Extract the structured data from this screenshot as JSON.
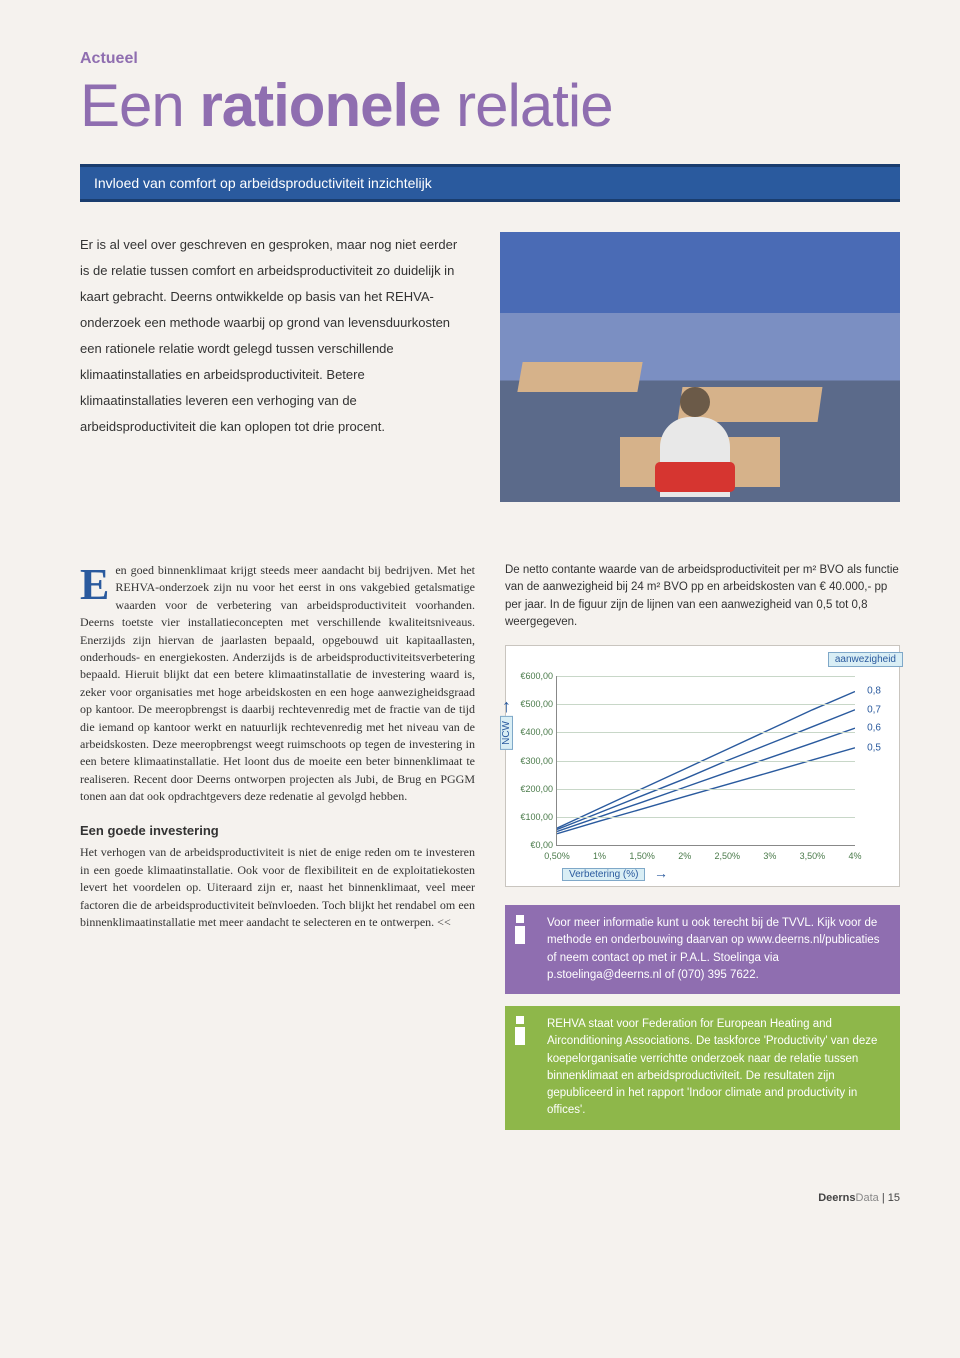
{
  "category": "Actueel",
  "title_part1": "Een ",
  "title_bold": "rationele",
  "title_part2": " relatie",
  "subtitle": "Invloed van comfort op arbeidsproductiviteit inzichtelijk",
  "intro": "Er is al veel over geschreven en gesproken, maar nog niet eerder is de relatie tussen comfort en arbeidsproductiviteit zo duidelijk in kaart gebracht. Deerns ontwikkelde op basis van het REHVA-onderzoek een methode waarbij op grond van levensduurkosten een rationele relatie wordt gelegd tussen verschillende klimaatinstallaties en arbeidsproductiviteit. Betere klimaatinstallaties leveren een verhoging van de arbeidsproductiviteit die kan oplopen tot drie procent.",
  "body": {
    "dropcap": "E",
    "p1": "en goed binnenklimaat krijgt steeds meer aandacht bij bedrijven. Met het REHVA-onderzoek zijn nu voor het eerst in ons vakgebied getalsmatige waarden voor de verbetering van arbeidsproductiviteit voorhanden. Deerns toetste vier installatieconcepten met verschillende kwaliteitsniveaus. Enerzijds zijn hiervan de jaarlasten bepaald, opgebouwd uit kapitaallasten, onderhouds- en energiekosten. Anderzijds is de arbeidsproductiviteitsverbetering bepaald. Hieruit blijkt dat een betere klimaatinstallatie de investering waard is, zeker voor organisaties met hoge arbeidskosten en een hoge aanwezigheidsgraad op kantoor. De meeropbrengst is daarbij rechtevenredig met de fractie van de tijd die iemand op kantoor werkt en natuurlijk rechtevenredig met het niveau van de arbeidskosten. Deze meeropbrengst weegt ruimschoots op tegen de investering in een betere klimaatinstallatie. Het loont dus de moeite een beter binnenklimaat te realiseren. Recent door Deerns ontworpen projecten als Jubi, de Brug en PGGM tonen aan dat ook opdrachtgevers deze redenatie al gevolgd hebben.",
    "h2": "Een goede investering",
    "p2": "Het verhogen van de arbeidsproductiviteit is niet de enige reden om te investeren in een goede klimaatinstallatie. Ook voor de flexibiliteit en de exploitatiekosten levert het voordelen op. Uiteraard zijn er, naast het binnenklimaat, veel meer factoren die de arbeidsproductiviteit beïnvloeden. Toch blijkt het rendabel om een binnenklimaatinstallatie met meer aandacht te selecteren en te ontwerpen. <<"
  },
  "right": {
    "caption": "De netto contante waarde van de arbeidsproductiviteit per m² BVO als functie van de aanwezigheid bij 24 m² BVO pp en arbeidskosten van € 40.000,- pp per jaar. In de figuur zijn de lijnen van een aanwezigheid van 0,5 tot 0,8 weergegeven.",
    "info1": "Voor meer informatie kunt u ook terecht bij de TVVL. Kijk voor de methode en onderbouwing daarvan op www.deerns.nl/publicaties of neem contact op met ir P.A.L. Stoelinga via p.stoelinga@deerns.nl of (070) 395 7622.",
    "info2": "REHVA staat voor Federation for European Heating and Airconditioning Associations. De taskforce 'Productivity' van deze koepelorganisatie verrichtte onderzoek naar de relatie tussen binnenklimaat en arbeidsproductiviteit. De resultaten zijn gepubliceerd in het rapport 'Indoor climate and productivity in offices'."
  },
  "chart": {
    "type": "line",
    "background_color": "#ffffff",
    "grid_color": "#c8d7c8",
    "axis_color": "#888888",
    "tick_fontsize": 9,
    "tick_color": "#4a7a4a",
    "ylim": [
      0,
      600
    ],
    "ytick_step": 100,
    "yticklabels": [
      "€0,00",
      "€100,00",
      "€200,00",
      "€300,00",
      "€400,00",
      "€500,00",
      "€600,00"
    ],
    "xlim": [
      0.5,
      4
    ],
    "xticks": [
      0.5,
      1,
      1.5,
      2,
      2.5,
      3,
      3.5,
      4
    ],
    "xticklabels": [
      "0,50%",
      "1%",
      "1,50%",
      "2%",
      "2,50%",
      "3%",
      "3,50%",
      "4%"
    ],
    "x_axis_label": "Verbetering (%)",
    "y_axis_label": "NCW",
    "legend_label": "aanwezigheid",
    "legend_bg": "#d9eef5",
    "legend_border": "#7fa8c8",
    "series": [
      {
        "name": "0,8",
        "color": "#2a5a9e",
        "values": [
          60,
          130,
          200,
          270,
          340,
          410,
          480,
          545
        ]
      },
      {
        "name": "0,7",
        "color": "#2a5a9e",
        "values": [
          55,
          115,
          175,
          235,
          300,
          360,
          420,
          480
        ]
      },
      {
        "name": "0,6",
        "color": "#2a5a9e",
        "values": [
          48,
          100,
          152,
          205,
          258,
          310,
          362,
          415
        ]
      },
      {
        "name": "0,5",
        "color": "#2a5a9e",
        "values": [
          40,
          85,
          128,
          172,
          215,
          258,
          302,
          345
        ]
      }
    ],
    "line_width": 1.4,
    "right_labels_color": "#2a5a9e"
  },
  "footer": {
    "brand_bold": "Deerns",
    "brand_light": "Data",
    "sep": " | ",
    "page": "15"
  }
}
